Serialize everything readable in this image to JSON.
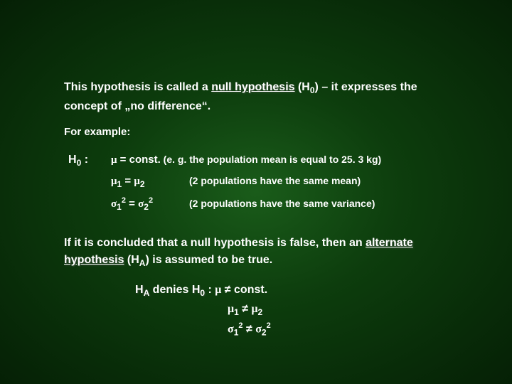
{
  "colors": {
    "background_center": "#1a5c1a",
    "background_mid": "#0d3d0d",
    "background_edge": "#052005",
    "text": "#ffffff"
  },
  "typography": {
    "body_font": "Arial",
    "body_size_pt": 12,
    "weight": "bold"
  },
  "para1": {
    "prefix": "This hypothesis is called a ",
    "null_hypothesis": "null hypothesis",
    "h_label": " (H",
    "h_sub": "0",
    "suffix": ") – it expresses the concept of „no difference“."
  },
  "for_example": "For example:",
  "h0_label": "H",
  "h0_sub": "0",
  "h0_colon": " :",
  "ex1": {
    "eq_mu": "μ",
    "eq_rest": " = const.",
    "desc": " (e. g. the population mean is equal to 25. 3 kg)"
  },
  "ex2": {
    "m1": "μ",
    "s1": "1",
    "eq": " = ",
    "m2": "μ",
    "s2": "2",
    "desc": "(2 populations have the same mean)"
  },
  "ex3": {
    "sig1": "σ",
    "s1": "1",
    "sq1": "2",
    "eq": " = ",
    "sig2": "σ",
    "s2": "2",
    "sq2": "2",
    "desc": "(2 populations have the same variance)"
  },
  "para2": {
    "prefix": "If it is concluded that a null hypothesis is false, then an ",
    "alt": "alternate hypothesis",
    "h_label": " (H",
    "h_sub": "A",
    "suffix": ") is assumed to be true."
  },
  "denies": {
    "ha": "H",
    "ha_sub": "A",
    "verb": " denies ",
    "h0": "H",
    "h0_sub": "0",
    "colon": "  :   ",
    "mu": "μ",
    "neq": " ≠ ",
    "const": "const."
  },
  "neq2": {
    "m1": "μ",
    "s1": "1",
    "neq": " ≠ ",
    "m2": "μ",
    "s2": "2"
  },
  "neq3": {
    "sig1": "σ",
    "s1": "1",
    "sq1": "2",
    "neq": " ≠ ",
    "sig2": "σ",
    "s2": "2",
    "sq2": "2"
  }
}
